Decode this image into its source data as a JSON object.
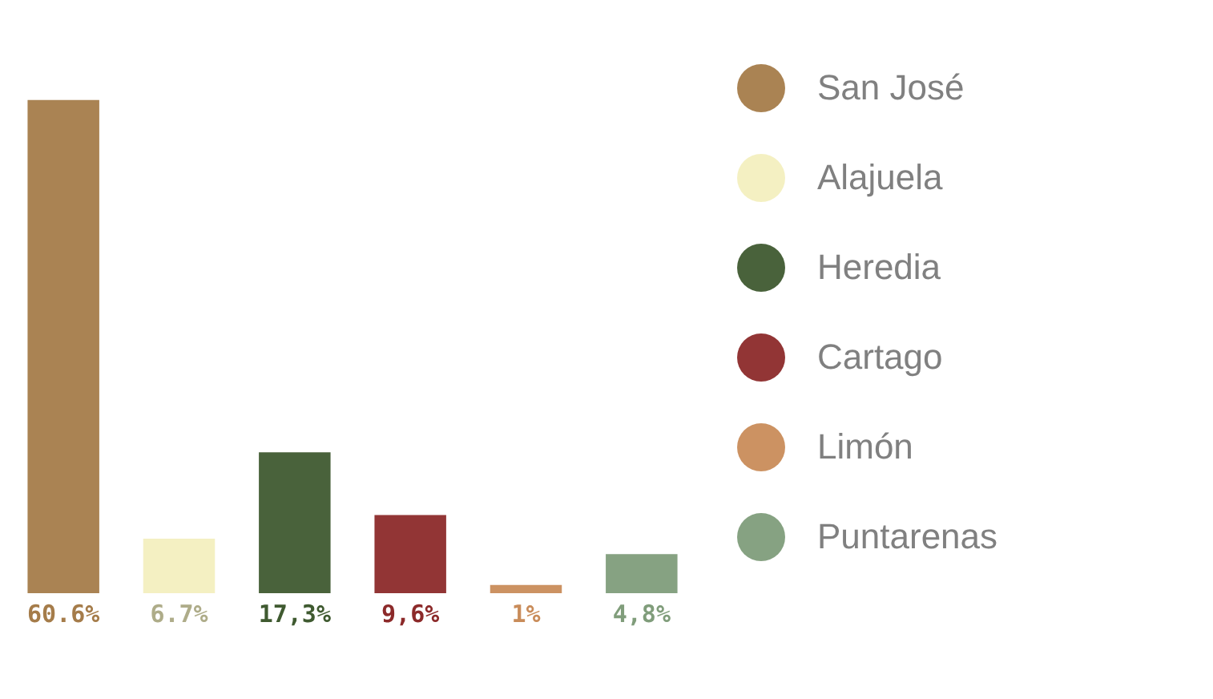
{
  "chart_data": {
    "type": "bar",
    "categories": [
      null,
      null,
      null,
      null,
      null,
      null
    ],
    "series": [
      {
        "name": "San José",
        "color": "#a57c4a",
        "values": [
          60.6,
          null,
          null,
          null,
          null,
          null
        ],
        "value_labels": [
          "60.6%",
          null,
          null,
          null,
          null,
          null
        ]
      },
      {
        "name": "Alajuela",
        "color": "#f3efbf",
        "values": [
          null,
          6.7,
          null,
          null,
          null,
          null
        ],
        "value_labels": [
          null,
          "6.7%",
          null,
          null,
          null,
          null
        ]
      },
      {
        "name": "Heredia",
        "color": "#3f5a30",
        "values": [
          null,
          null,
          17.3,
          null,
          null,
          null
        ],
        "value_labels": [
          null,
          null,
          "17,3%",
          null,
          null,
          null
        ]
      },
      {
        "name": "Cartago",
        "color": "#8c2a2a",
        "values": [
          null,
          null,
          null,
          9.6,
          null,
          null
        ],
        "value_labels": [
          null,
          null,
          null,
          "9,6%",
          null,
          null
        ]
      },
      {
        "name": "Limón",
        "color": "#c98c5a",
        "values": [
          null,
          null,
          null,
          null,
          1,
          null
        ],
        "value_labels": [
          null,
          null,
          null,
          null,
          "1%",
          null
        ]
      },
      {
        "name": "Puntarenas",
        "color": "#809d7b",
        "values": [
          null,
          null,
          null,
          null,
          null,
          4.8
        ],
        "value_labels": [
          null,
          null,
          null,
          null,
          null,
          "4,8%"
        ]
      }
    ],
    "stacked": true,
    "tick_labels": false,
    "grid": false,
    "legend": "right"
  }
}
